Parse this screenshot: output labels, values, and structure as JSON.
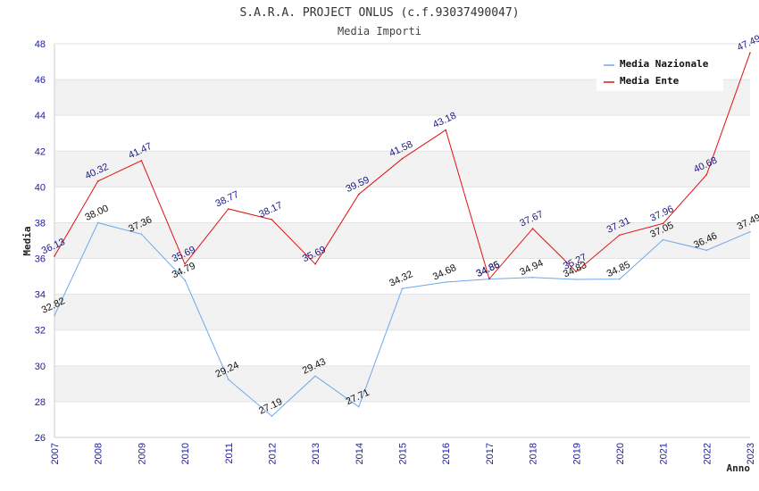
{
  "chart_data": {
    "type": "line",
    "title": "S.A.R.A. PROJECT ONLUS (c.f.93037490047)",
    "subtitle": "Media Importi",
    "xlabel": "Anno",
    "ylabel": "Media",
    "ylim": [
      26,
      48
    ],
    "yticks": [
      "26",
      "28",
      "30",
      "32",
      "34",
      "36",
      "38",
      "40",
      "42",
      "44",
      "46",
      "48"
    ],
    "x": [
      "2007",
      "2008",
      "2009",
      "2010",
      "2011",
      "2012",
      "2013",
      "2014",
      "2015",
      "2016",
      "2017",
      "2018",
      "2019",
      "2020",
      "2021",
      "2022",
      "2023"
    ],
    "series": [
      {
        "name": "Media Nazionale",
        "color": "#6fa8e8",
        "values": [
          32.82,
          38.0,
          37.36,
          34.79,
          29.24,
          27.19,
          29.43,
          27.71,
          34.32,
          34.68,
          34.85,
          34.94,
          34.83,
          34.85,
          37.05,
          36.46,
          37.49
        ],
        "labels": [
          "32.82",
          "38.00",
          "37.36",
          "34.79",
          "29.24",
          "27.19",
          "29.43",
          "27.71",
          "34.32",
          "34.68",
          "34.85",
          "34.94",
          "34.83",
          "34.85",
          "37.05",
          "36.46",
          "37.49"
        ]
      },
      {
        "name": "Media Ente",
        "color": "#e01010",
        "values": [
          36.13,
          40.32,
          41.47,
          35.69,
          38.77,
          38.17,
          35.69,
          39.59,
          41.58,
          43.18,
          34.86,
          37.67,
          35.27,
          37.31,
          37.96,
          40.68,
          47.49
        ],
        "labels": [
          "36.13",
          "40.32",
          "41.47",
          "35.69",
          "38.77",
          "38.17",
          "35.69",
          "39.59",
          "41.58",
          "43.18",
          "34.86",
          "37.67",
          "35.27",
          "37.31",
          "37.96",
          "40.68",
          "47.49"
        ]
      }
    ],
    "grid": true,
    "legend": "top-right"
  }
}
